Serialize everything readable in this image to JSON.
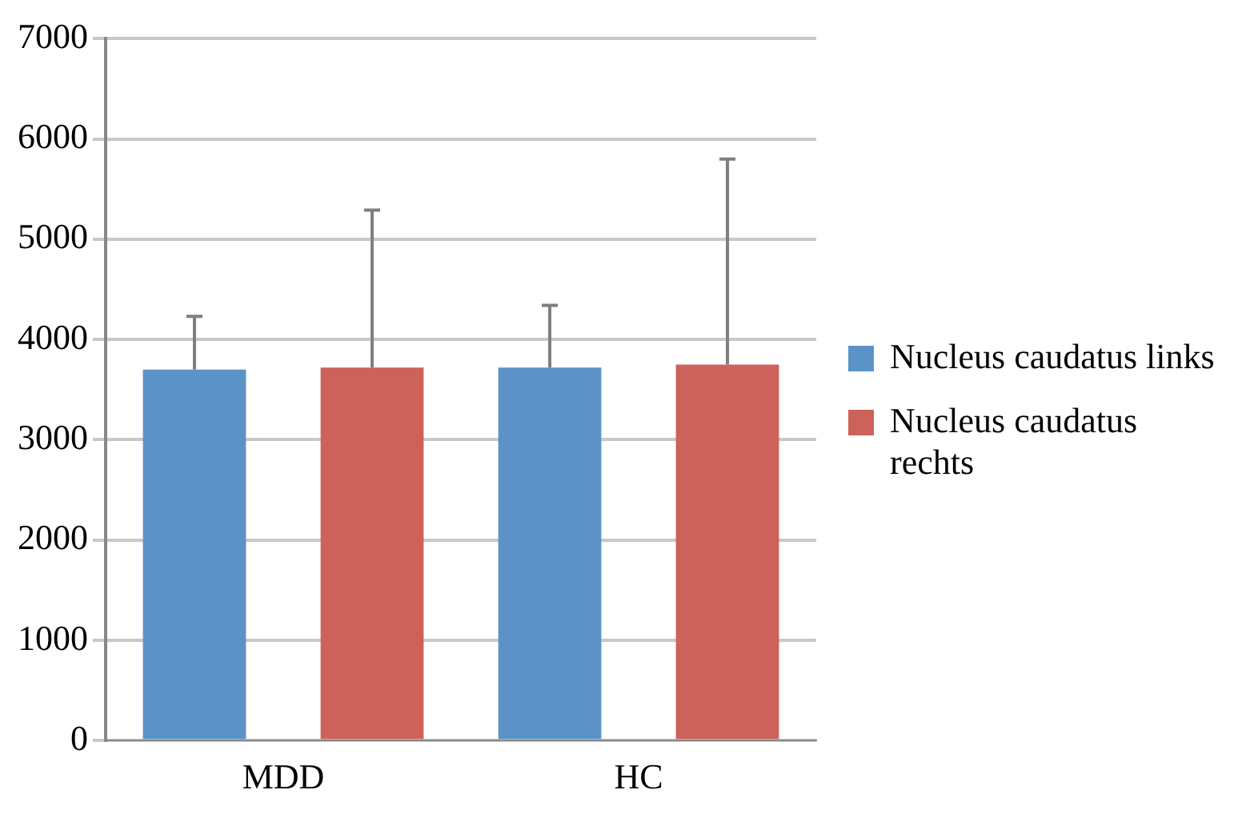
{
  "chart_data": {
    "type": "bar",
    "categories": [
      "MDD",
      "HC"
    ],
    "series": [
      {
        "name": "Nucleus caudatus links",
        "color": "#5b93c9",
        "values": [
          3700,
          3720
        ],
        "errors": [
          [
            3700,
            4230
          ],
          [
            3720,
            4340
          ]
        ]
      },
      {
        "name": "Nucleus caudatus rechts",
        "color": "#cc6259",
        "values": [
          3720,
          3750
        ],
        "errors": [
          [
            3720,
            5290
          ],
          [
            3750,
            5800
          ]
        ]
      }
    ],
    "ylim": [
      0,
      7000
    ],
    "yticks": [
      0,
      1000,
      2000,
      3000,
      4000,
      5000,
      6000,
      7000
    ],
    "grid": "y",
    "legend": "right"
  }
}
